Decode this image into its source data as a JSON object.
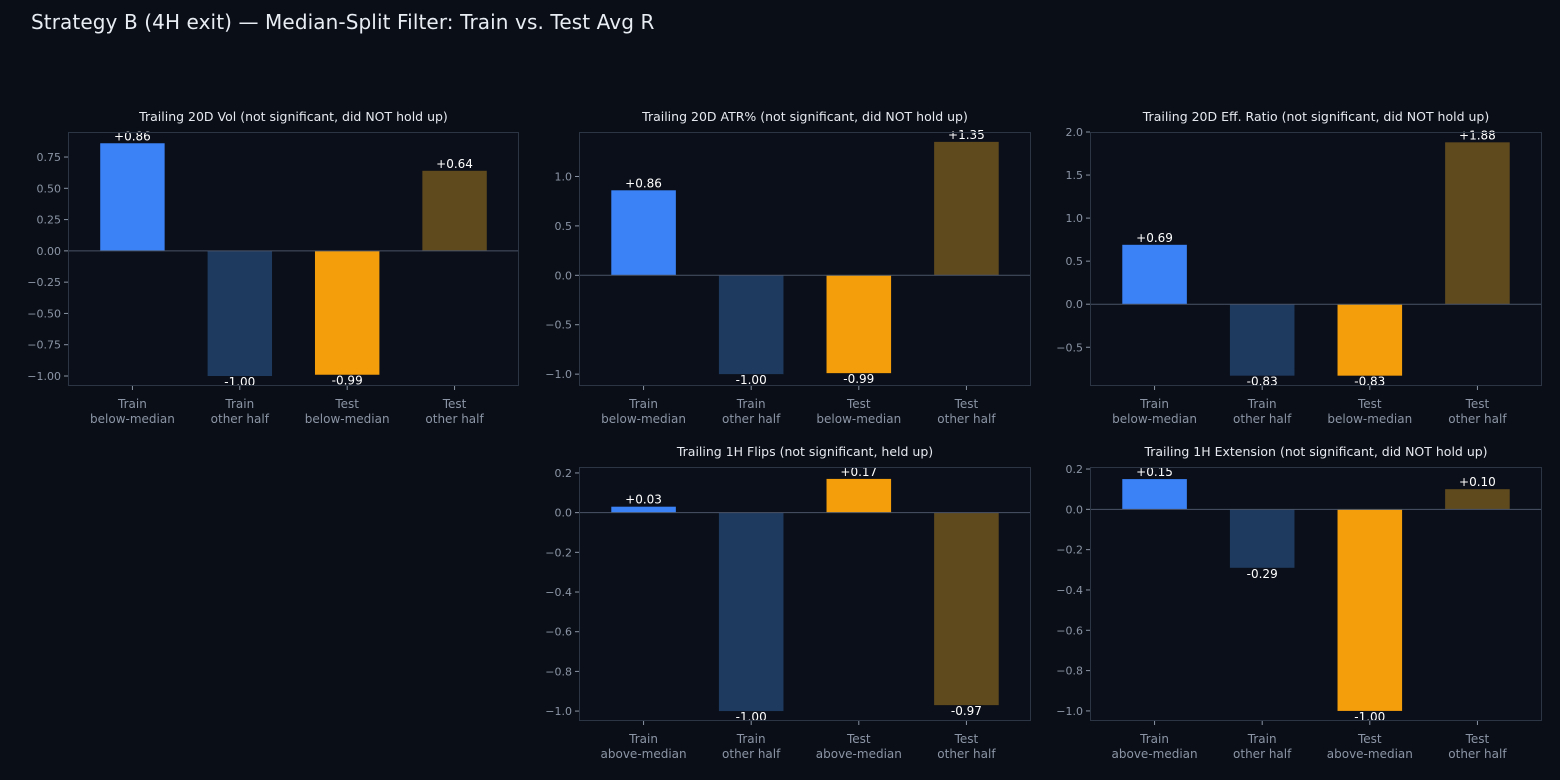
{
  "title": "Strategy B (4H exit) — Median-Split Filter: Train vs. Test Avg R",
  "colors": {
    "background": "#0a0e17",
    "panel_background": "#0b0f19",
    "axis": "#2c3544",
    "tick_text": "#8b95a5",
    "title_text": "#e6e9ef",
    "value_text": "#ffffff",
    "train_primary": "#3b82f6",
    "train_other": "#1e3a5f",
    "test_primary": "#f59e0b",
    "test_other": "#5f4a1e"
  },
  "chart_data": [
    {
      "type": "bar",
      "title": "Trailing 20D Vol (not significant, did NOT hold up)",
      "categories": [
        "Train\nbelow-median",
        "Train\nother half",
        "Test\nbelow-median",
        "Test\nother half"
      ],
      "values": [
        0.86,
        -1.0,
        -0.99,
        0.64
      ],
      "value_labels": [
        "+0.86",
        "-1.00",
        "-0.99",
        "+0.64"
      ],
      "ylim": [
        -1.08,
        0.95
      ],
      "yticks": [
        -1.0,
        -0.75,
        -0.5,
        -0.25,
        0.0,
        0.25,
        0.5,
        0.75
      ],
      "ytick_labels": [
        "−1.00",
        "−0.75",
        "−0.50",
        "−0.25",
        "0.00",
        "0.25",
        "0.50",
        "0.75"
      ],
      "grid": false
    },
    {
      "type": "bar",
      "title": "Trailing 20D ATR% (not significant, did NOT hold up)",
      "categories": [
        "Train\nbelow-median",
        "Train\nother half",
        "Test\nbelow-median",
        "Test\nother half"
      ],
      "values": [
        0.86,
        -1.0,
        -0.99,
        1.35
      ],
      "value_labels": [
        "+0.86",
        "-1.00",
        "-0.99",
        "+1.35"
      ],
      "ylim": [
        -1.12,
        1.45
      ],
      "yticks": [
        -1.0,
        -0.5,
        0.0,
        0.5,
        1.0
      ],
      "ytick_labels": [
        "−1.0",
        "−0.5",
        "0.0",
        "0.5",
        "1.0"
      ],
      "grid": false
    },
    {
      "type": "bar",
      "title": "Trailing 20D Eff. Ratio (not significant, did NOT hold up)",
      "categories": [
        "Train\nbelow-median",
        "Train\nother half",
        "Test\nbelow-median",
        "Test\nother half"
      ],
      "values": [
        0.69,
        -0.83,
        -0.83,
        1.88
      ],
      "value_labels": [
        "+0.69",
        "-0.83",
        "-0.83",
        "+1.88"
      ],
      "ylim": [
        -0.95,
        2.0
      ],
      "yticks": [
        -0.5,
        0.0,
        0.5,
        1.0,
        1.5,
        2.0
      ],
      "ytick_labels": [
        "−0.5",
        "0.0",
        "0.5",
        "1.0",
        "1.5",
        "2.0"
      ],
      "grid": false
    },
    {
      "type": "bar",
      "title": "Trailing 1H Flips (not significant, held up)",
      "categories": [
        "Train\nabove-median",
        "Train\nother half",
        "Test\nabove-median",
        "Test\nother half"
      ],
      "values": [
        0.03,
        -1.0,
        0.17,
        -0.97
      ],
      "value_labels": [
        "+0.03",
        "-1.00",
        "+0.17",
        "-0.97"
      ],
      "ylim": [
        -1.05,
        0.23
      ],
      "yticks": [
        -1.0,
        -0.8,
        -0.6,
        -0.4,
        -0.2,
        0.0,
        0.2
      ],
      "ytick_labels": [
        "−1.0",
        "−0.8",
        "−0.6",
        "−0.4",
        "−0.2",
        "0.0",
        "0.2"
      ],
      "grid": false
    },
    {
      "type": "bar",
      "title": "Trailing 1H Extension (not significant, did NOT hold up)",
      "categories": [
        "Train\nabove-median",
        "Train\nother half",
        "Test\nabove-median",
        "Test\nother half"
      ],
      "values": [
        0.15,
        -0.29,
        -1.0,
        0.1
      ],
      "value_labels": [
        "+0.15",
        "-0.29",
        "-1.00",
        "+0.10"
      ],
      "ylim": [
        -1.05,
        0.21
      ],
      "yticks": [
        -1.0,
        -0.8,
        -0.6,
        -0.4,
        -0.2,
        0.0,
        0.2
      ],
      "ytick_labels": [
        "−1.0",
        "−0.8",
        "−0.6",
        "−0.4",
        "−0.2",
        "0.0",
        "0.2"
      ],
      "grid": false
    }
  ]
}
